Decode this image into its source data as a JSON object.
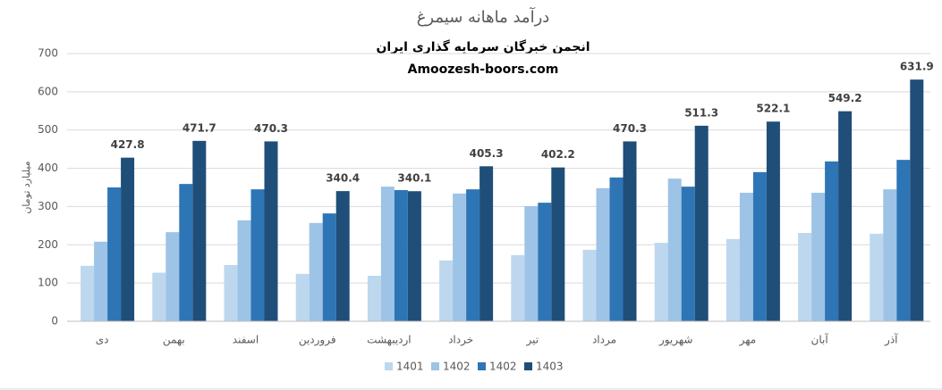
{
  "chart_data": {
    "type": "bar",
    "title": "درآمد ماهانه سیمرغ",
    "subtitle": [
      "انجمن خبرگان سرمایه گذاری ایران",
      "Amoozesh-boors.com"
    ],
    "y_label": "میلیارد تومان",
    "categories": [
      "دی",
      "بهمن",
      "اسفند",
      "فروردین",
      "اردیبهشت",
      "خرداد",
      "تیر",
      "مرداد",
      "شهریور",
      "مهر",
      "آبان",
      "آذر"
    ],
    "series": [
      {
        "name": "1401",
        "color": "#bdd7ee",
        "data_labels": false,
        "values": [
          145,
          127,
          147,
          124,
          119,
          159,
          173,
          187,
          205,
          215,
          231,
          229
        ]
      },
      {
        "name": "1402",
        "color": "#9dc3e6",
        "data_labels": false,
        "values": [
          208,
          233,
          264,
          257,
          352,
          334,
          301,
          348,
          373,
          336,
          336,
          345
        ]
      },
      {
        "name": "1402",
        "color": "#2e75b6",
        "data_labels": false,
        "values": [
          350,
          359,
          345,
          282,
          343,
          345,
          310,
          376,
          352,
          390,
          418,
          422
        ]
      },
      {
        "name": "1403",
        "color": "#1f4e79",
        "data_labels": true,
        "values": [
          427.8,
          471.7,
          470.3,
          340.4,
          340.1,
          405.3,
          402.2,
          470.3,
          511.3,
          522.1,
          549.2,
          631.9
        ]
      }
    ],
    "ylim": [
      0,
      700
    ],
    "yticks": [
      0,
      100,
      200,
      300,
      400,
      500,
      600,
      700
    ],
    "grid": true,
    "legend": "bottom"
  }
}
